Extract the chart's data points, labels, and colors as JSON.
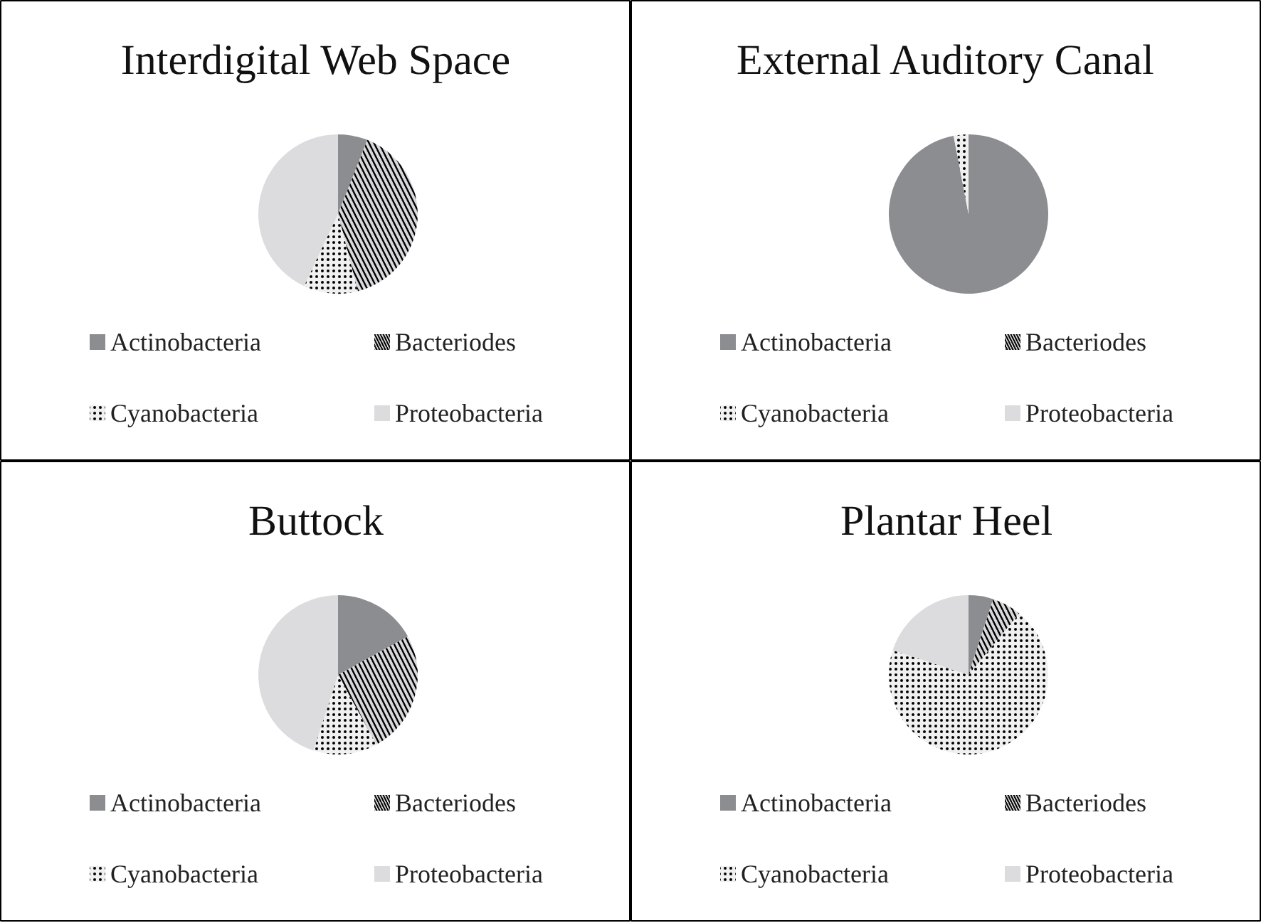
{
  "chart_data": [
    {
      "type": "pie",
      "title": "Interdigital Web Space",
      "categories": [
        "Actinobacteria",
        "Bacteriodes",
        "Cyanobacteria",
        "Proteobacteria"
      ],
      "values": [
        6,
        40,
        11,
        43
      ],
      "colors": [
        "#8c8d90",
        "#d9d9db",
        "#f0f0f0",
        "#dcdcde"
      ],
      "legend": "bottom"
    },
    {
      "type": "pie",
      "title": "External Auditory Canal",
      "categories": [
        "Actinobacteria",
        "Bacteriodes",
        "Cyanobacteria",
        "Proteobacteria"
      ],
      "values": [
        97,
        0,
        3,
        0
      ],
      "colors": [
        "#8c8d90",
        "#d9d9db",
        "#f0f0f0",
        "#dcdcde"
      ],
      "legend": "bottom"
    },
    {
      "type": "pie",
      "title": "Buttock",
      "categories": [
        "Actinobacteria",
        "Bacteriodes",
        "Cyanobacteria",
        "Proteobacteria"
      ],
      "values": [
        17,
        25,
        13,
        45
      ],
      "colors": [
        "#8c8d90",
        "#d9d9db",
        "#f0f0f0",
        "#dcdcde"
      ],
      "legend": "bottom"
    },
    {
      "type": "pie",
      "title": "Plantar Heel",
      "categories": [
        "Actinobacteria",
        "Bacteriodes",
        "Cyanobacteria",
        "Proteobacteria"
      ],
      "values": [
        5,
        6,
        69,
        20
      ],
      "colors": [
        "#8c8d90",
        "#d9d9db",
        "#f0f0f0",
        "#dcdcde"
      ],
      "legend": "bottom"
    }
  ]
}
